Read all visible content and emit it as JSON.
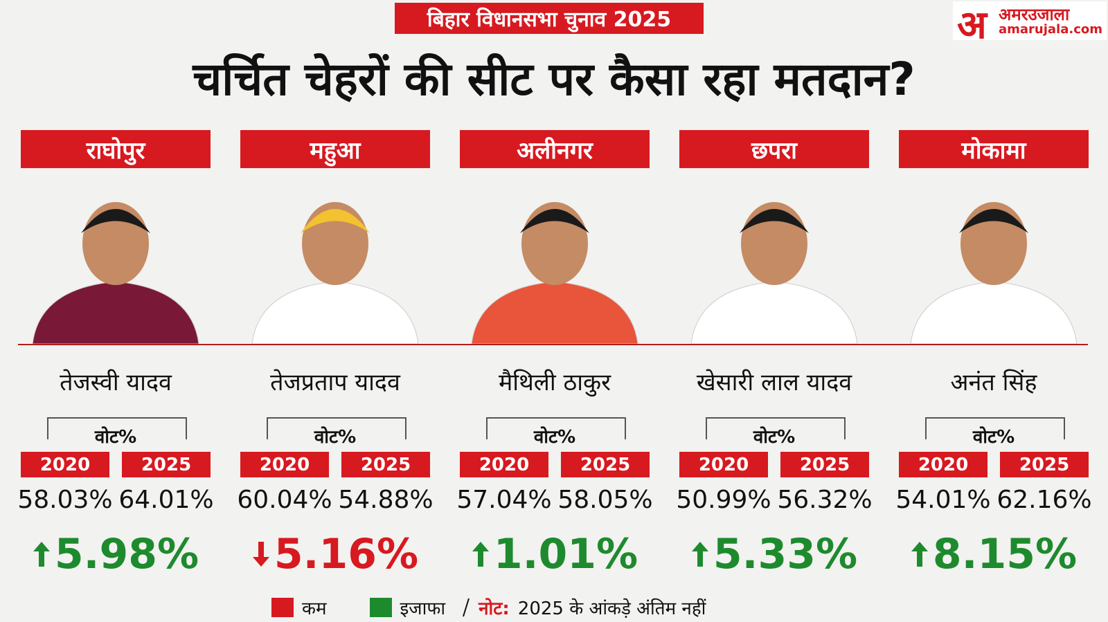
{
  "header": {
    "tag": "बिहार विधानसभा चुनाव 2025",
    "title": "चर्चित चेहरों की सीट पर कैसा रहा मतदान?",
    "logo": {
      "mark": "अ",
      "name": "अमरउजाला",
      "site": "amarujala.com"
    }
  },
  "columns": [
    {
      "seat": "राघोपुर",
      "candidate": "तेजस्वी यादव",
      "vote_label": "वोट%",
      "years": [
        "2020",
        "2025"
      ],
      "values": [
        "58.03%",
        "64.01%"
      ],
      "change": "5.98%",
      "arrow": "up",
      "color": "#1e8a2e"
    },
    {
      "seat": "महुआ",
      "candidate": "तेजप्रताप यादव",
      "vote_label": "वोट%",
      "years": [
        "2020",
        "2025"
      ],
      "values": [
        "60.04%",
        "54.88%"
      ],
      "change": "5.16%",
      "arrow": "down",
      "color": "#d71920"
    },
    {
      "seat": "अलीनगर",
      "candidate": "मैथिली ठाकुर",
      "vote_label": "वोट%",
      "years": [
        "2020",
        "2025"
      ],
      "values": [
        "57.04%",
        "58.05%"
      ],
      "change": "1.01%",
      "arrow": "up",
      "color": "#1e8a2e"
    },
    {
      "seat": "छपरा",
      "candidate": "खेसारी लाल यादव",
      "vote_label": "वोट%",
      "years": [
        "2020",
        "2025"
      ],
      "values": [
        "50.99%",
        "56.32%"
      ],
      "change": "5.33%",
      "arrow": "up",
      "color": "#1e8a2e"
    },
    {
      "seat": "मोकामा",
      "candidate": "अनंत सिंह",
      "vote_label": "वोट%",
      "years": [
        "2020",
        "2025"
      ],
      "values": [
        "54.01%",
        "62.16%"
      ],
      "change": "8.15%",
      "arrow": "up",
      "color": "#1e8a2e"
    }
  ],
  "legend": {
    "items": [
      {
        "label": "कम",
        "color": "#d71920"
      },
      {
        "label": "इजाफा",
        "color": "#1e8a2e"
      }
    ],
    "note_label": "नोट:",
    "note": "2025 के आंकड़े अंतिम नहीं"
  }
}
